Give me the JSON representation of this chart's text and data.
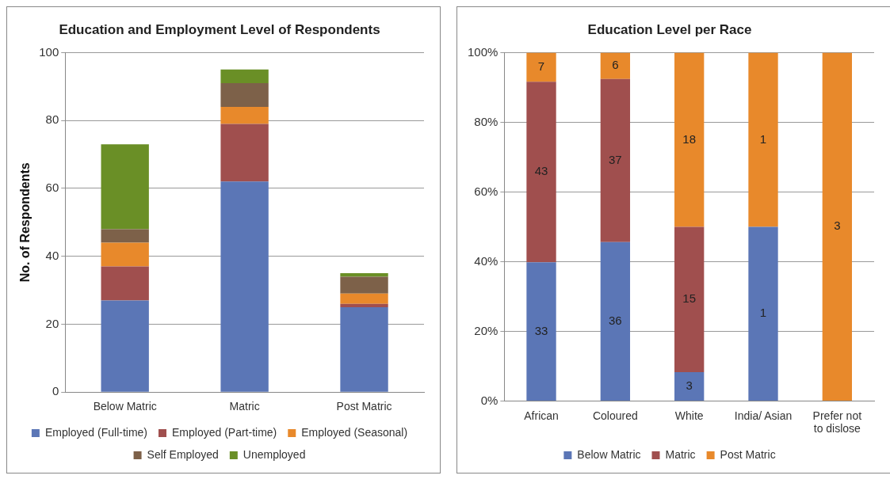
{
  "chart_data": [
    {
      "type": "bar",
      "title": "Education and Employment Level of Respondents",
      "ylabel": "No. of Respondents",
      "categories": [
        "Below Matric",
        "Matric",
        "Post Matric"
      ],
      "stacked": true,
      "ylim": [
        0,
        100
      ],
      "yticks": [
        0,
        20,
        40,
        60,
        80,
        100
      ],
      "grid": "y",
      "legend": "bottom",
      "series": [
        {
          "name": "Employed (Full-time)",
          "color": "#5b76b6",
          "values": [
            27,
            62,
            25
          ]
        },
        {
          "name": "Employed (Part-time)",
          "color": "#a04f4e",
          "values": [
            10,
            17,
            1
          ]
        },
        {
          "name": "Employed (Seasonal)",
          "color": "#e8892b",
          "values": [
            7,
            5,
            3
          ]
        },
        {
          "name": "Self Employed",
          "color": "#7d6149",
          "values": [
            4,
            7,
            5
          ]
        },
        {
          "name": "Unemployed",
          "color": "#6a8f26",
          "values": [
            25,
            4,
            1
          ]
        }
      ]
    },
    {
      "type": "bar",
      "title": "Education Level per Race",
      "categories": [
        "African",
        "Coloured",
        "White",
        "India/ Asian",
        "Prefer not to dislose"
      ],
      "stacked": true,
      "ylim": [
        0,
        100
      ],
      "yticks": [
        {
          "value": 0,
          "label": "0%"
        },
        {
          "value": 20,
          "label": "20%"
        },
        {
          "value": 40,
          "label": "40%"
        },
        {
          "value": 60,
          "label": "60%"
        },
        {
          "value": 80,
          "label": "80%"
        },
        {
          "value": 100,
          "label": "100%"
        }
      ],
      "grid": "y",
      "legend": "bottom",
      "series": [
        {
          "name": "Below Matric",
          "color": "#5b76b6",
          "values": [
            39.8,
            45.6,
            8.3,
            50,
            0
          ]
        },
        {
          "name": "Matric",
          "color": "#a04f4e",
          "values": [
            51.8,
            46.8,
            41.7,
            0,
            0
          ]
        },
        {
          "name": "Post Matric",
          "color": "#e8892b",
          "values": [
            8.4,
            7.6,
            50,
            50,
            100
          ]
        }
      ],
      "annotations": [
        "33",
        "43",
        "7",
        "36",
        "37",
        "6",
        "3",
        "15",
        "18",
        "1",
        "1",
        "3"
      ]
    }
  ]
}
